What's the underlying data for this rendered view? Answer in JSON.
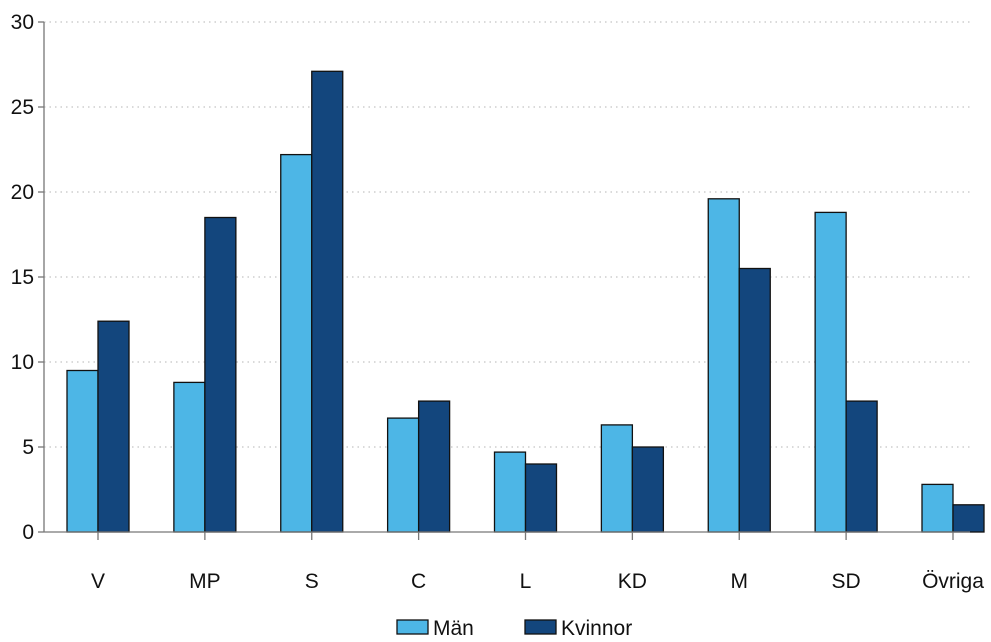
{
  "chart_data": {
    "type": "bar",
    "title": "",
    "xlabel": "",
    "ylabel": "",
    "ylim": [
      0,
      30
    ],
    "yticks": [
      0,
      5,
      10,
      15,
      20,
      25,
      30
    ],
    "grid": "horizontal-dotted",
    "legend_position": "bottom-center",
    "categories": [
      "V",
      "MP",
      "S",
      "C",
      "L",
      "KD",
      "M",
      "SD",
      "Övriga"
    ],
    "series": [
      {
        "name": "Män",
        "color": "#4DB6E6",
        "values": [
          9.5,
          8.8,
          22.2,
          6.7,
          4.7,
          6.3,
          19.6,
          18.8,
          2.8
        ]
      },
      {
        "name": "Kvinnor",
        "color": "#13467D",
        "values": [
          12.4,
          18.5,
          27.1,
          7.7,
          4.0,
          5.0,
          15.5,
          7.7,
          1.6
        ]
      }
    ]
  }
}
